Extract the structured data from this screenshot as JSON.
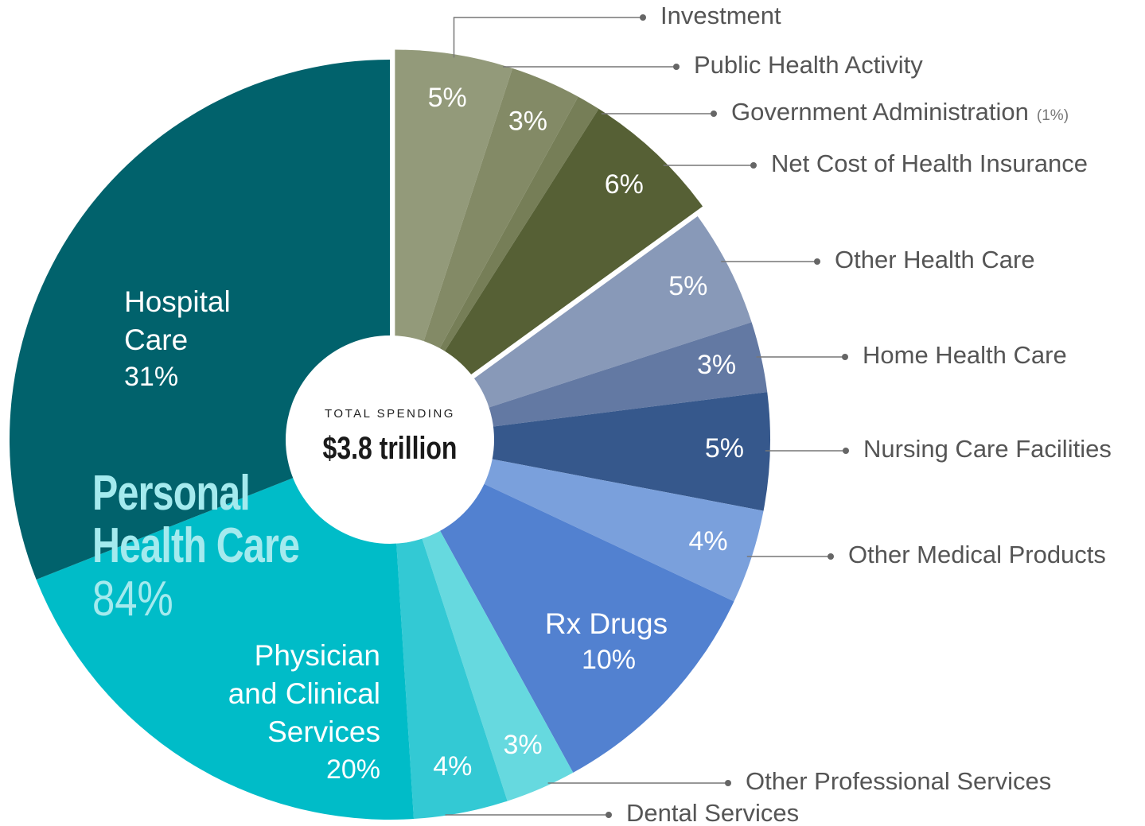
{
  "chart_data": {
    "type": "pie",
    "categories": [
      "Investment",
      "Public Health Activity",
      "Government Administration",
      "Net Cost of Health Insurance",
      "Other Health Care",
      "Home Health Care",
      "Nursing Care Facilities",
      "Other Medical Products",
      "Rx Drugs",
      "Other Professional Services",
      "Dental Services",
      "Physician and Clinical Services",
      "Hospital Care"
    ],
    "values": [
      5,
      3,
      1,
      6,
      5,
      3,
      5,
      4,
      10,
      3,
      4,
      20,
      31
    ],
    "value_labels": [
      "5%",
      "3%",
      "(1%)",
      "6%",
      "5%",
      "3%",
      "5%",
      "4%",
      "10%",
      "3%",
      "4%",
      "20%",
      "31%"
    ],
    "colors": [
      "#939a7a",
      "#838a66",
      "#767e57",
      "#566035",
      "#8899b8",
      "#6379a3",
      "#36588c",
      "#7aa0dc",
      "#5281d0",
      "#66d9df",
      "#33c9d4",
      "#00bcc8",
      "#01626c"
    ],
    "total": {
      "label": "TOTAL SPENDING",
      "value": 3800000000000,
      "value_label": "$3.8 trillion"
    },
    "group": {
      "name": "Personal Health Care",
      "value": 84,
      "value_label": "84%"
    }
  }
}
